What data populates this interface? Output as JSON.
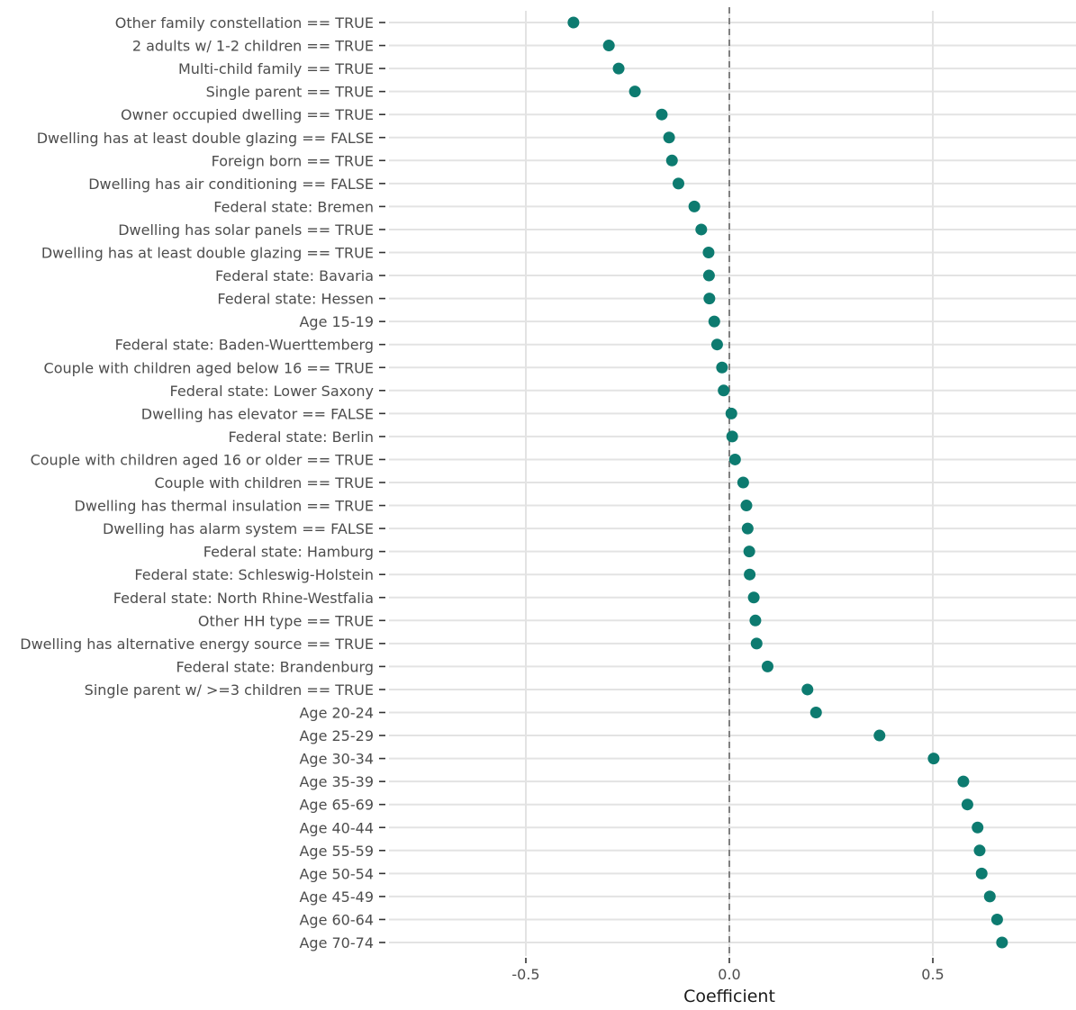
{
  "chart_data": {
    "type": "scatter",
    "xlabel": "Coefficient",
    "xlim": [
      -0.86,
      0.86
    ],
    "xticks": [
      -0.5,
      0.0,
      0.5
    ],
    "xtick_labels": [
      "-0.5",
      "0.0",
      "0.5"
    ],
    "reference_line": 0,
    "grid": true,
    "point_color": "#0d7b70",
    "categories": [
      "Other family constellation == TRUE",
      "2 adults w/ 1-2 children == TRUE",
      "Multi-child family == TRUE",
      "Single parent  == TRUE",
      "Owner occupied dwelling == TRUE",
      "Dwelling has at least double glazing == FALSE",
      "Foreign born == TRUE",
      "Dwelling has air conditioning == FALSE",
      "Federal state: Bremen",
      "Dwelling has solar panels == TRUE",
      "Dwelling has at least double glazing == TRUE",
      "Federal state: Bavaria",
      "Federal state: Hessen",
      "Age 15-19",
      "Federal state: Baden-Wuerttemberg",
      "Couple with children aged below 16 == TRUE",
      "Federal state: Lower Saxony",
      "Dwelling has elevator == FALSE",
      "Federal state: Berlin",
      "Couple with children aged 16 or older == TRUE",
      "Couple with children == TRUE",
      "Dwelling has thermal insulation == TRUE",
      "Dwelling has alarm system == FALSE",
      "Federal state: Hamburg",
      "Federal state: Schleswig-Holstein",
      "Federal state: North Rhine-Westfalia",
      "Other HH type == TRUE",
      "Dwelling has alternative energy source == TRUE",
      "Federal state: Brandenburg",
      "Single parent w/ >=3 children == TRUE",
      "Age 20-24",
      "Age 25-29",
      "Age 30-34",
      "Age 35-39",
      "Age 65-69",
      "Age 40-44",
      "Age 55-59",
      "Age 50-54",
      "Age 45-49",
      "Age 60-64",
      "Age 70-74"
    ],
    "values": [
      -0.383,
      -0.296,
      -0.272,
      -0.232,
      -0.166,
      -0.148,
      -0.141,
      -0.125,
      -0.086,
      -0.069,
      -0.051,
      -0.05,
      -0.049,
      -0.037,
      -0.03,
      -0.018,
      -0.014,
      0.005,
      0.007,
      0.014,
      0.034,
      0.042,
      0.045,
      0.049,
      0.05,
      0.06,
      0.064,
      0.067,
      0.094,
      0.192,
      0.213,
      0.369,
      0.502,
      0.575,
      0.585,
      0.61,
      0.615,
      0.62,
      0.64,
      0.658,
      0.67
    ]
  }
}
